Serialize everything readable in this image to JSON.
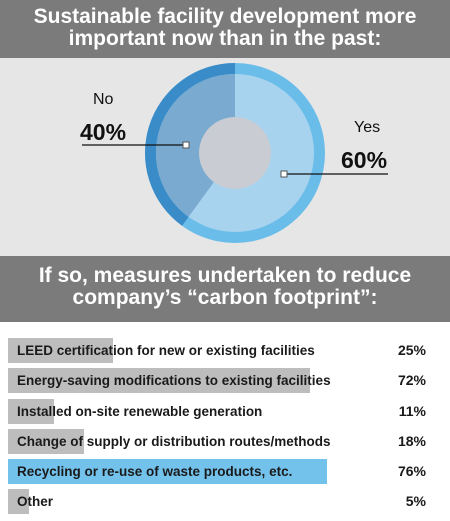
{
  "chart_data": [
    {
      "type": "pie",
      "title": "Sustainable facility development more important now than in the past:",
      "categories": [
        "No",
        "Yes"
      ],
      "values": [
        40,
        60
      ],
      "value_labels": [
        "40%",
        "60%"
      ],
      "colors": {
        "no_fill": "#7aaad0",
        "no_ring": "#3a8cc8",
        "yes_fill": "#a7d3ef",
        "yes_ring": "#6bbde9",
        "hole": "#c9ccd2"
      }
    },
    {
      "type": "bar",
      "title": "If so, measures undertaken to reduce company’s “carbon footprint”:",
      "categories": [
        "LEED certification for new or existing facilities",
        "Energy-saving modifications to existing facilities",
        "Installed on-site renewable generation",
        "Change of supply or distribution routes/methods",
        "Recycling or re-use of waste products, etc.",
        "Other"
      ],
      "values": [
        25,
        72,
        11,
        18,
        76,
        5
      ],
      "value_labels": [
        "25%",
        "72%",
        "11%",
        "18%",
        "76%",
        "5%"
      ],
      "highlight_index": 4,
      "xlim": [
        0,
        100
      ],
      "colors": {
        "bar": "#bdbdbd",
        "highlight": "#73c2ec"
      }
    }
  ]
}
